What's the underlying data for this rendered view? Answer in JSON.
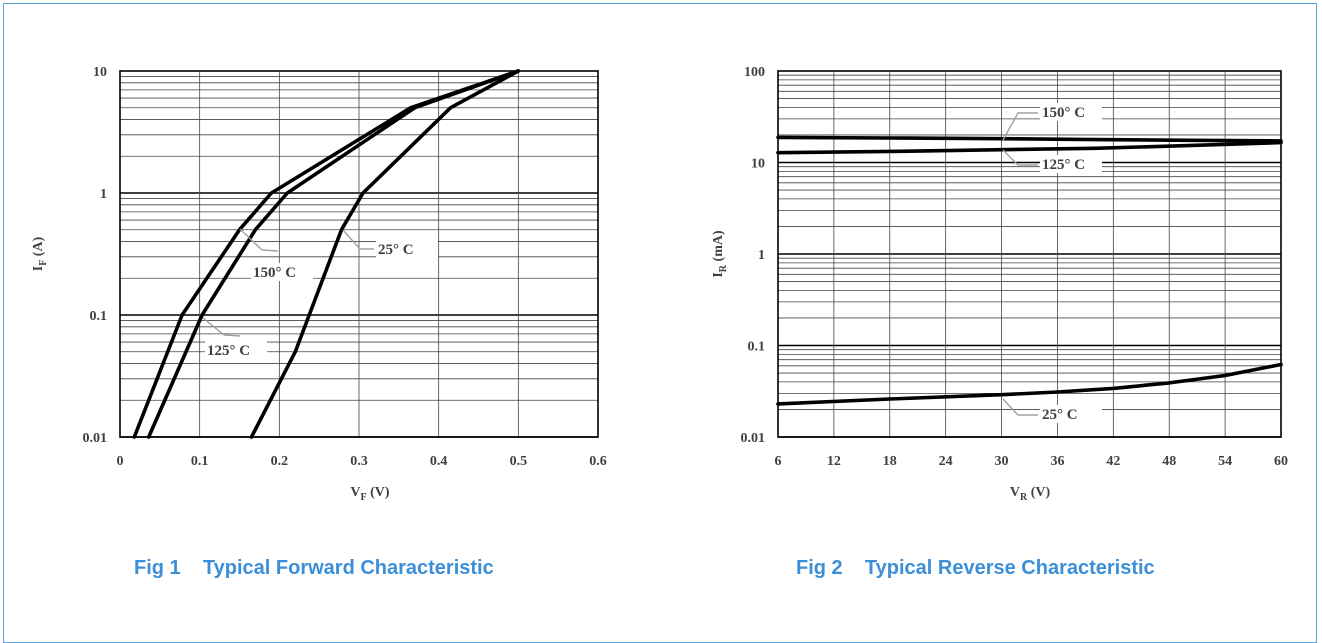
{
  "chart_data": [
    {
      "type": "line",
      "title": "",
      "caption": "Fig 1    Typical Forward Characteristic",
      "xlabel_main": "V",
      "xlabel_sub": "F",
      "xlabel_unit": " (V)",
      "ylabel_main": "I",
      "ylabel_sub": "F",
      "ylabel_unit": " (A)",
      "xscale": "linear",
      "yscale": "log",
      "xlim": [
        0,
        0.6
      ],
      "ylim": [
        0.01,
        10
      ],
      "xticks": [
        "0",
        "0.1",
        "0.2",
        "0.3",
        "0.4",
        "0.5",
        "0.6"
      ],
      "yticks": [
        "0.01",
        "0.1",
        "1",
        "10"
      ],
      "grid": true,
      "series": [
        {
          "name": "150° C",
          "color": "#000000",
          "x": [
            0.018,
            0.078,
            0.15,
            0.19,
            0.365,
            0.5
          ],
          "y": [
            0.01,
            0.1,
            0.5,
            1,
            5,
            10
          ]
        },
        {
          "name": "125° C",
          "color": "#000000",
          "x": [
            0.036,
            0.103,
            0.17,
            0.21,
            0.37,
            0.5
          ],
          "y": [
            0.01,
            0.1,
            0.5,
            1,
            5,
            10
          ]
        },
        {
          "name": "25° C",
          "color": "#000000",
          "x": [
            0.165,
            0.22,
            0.278,
            0.305,
            0.415,
            0.5
          ],
          "y": [
            0.01,
            0.05,
            0.5,
            1,
            5,
            10
          ]
        }
      ],
      "annotations": [
        {
          "text": "150° C",
          "series": "150° C"
        },
        {
          "text": "125° C",
          "series": "125° C"
        },
        {
          "text": "25° C",
          "series": "25° C"
        }
      ]
    },
    {
      "type": "line",
      "title": "",
      "caption": "Fig 2    Typical Reverse Characteristic",
      "xlabel_main": "V",
      "xlabel_sub": "R",
      "xlabel_unit": " (V)",
      "ylabel_main": "I",
      "ylabel_sub": "R",
      "ylabel_unit": " (mA)",
      "xscale": "linear",
      "yscale": "log",
      "xlim": [
        6,
        60
      ],
      "ylim": [
        0.01,
        100
      ],
      "xticks": [
        "6",
        "12",
        "18",
        "24",
        "30",
        "36",
        "42",
        "48",
        "54",
        "60"
      ],
      "yticks": [
        "0.01",
        "0.1",
        "1",
        "10",
        "100"
      ],
      "grid": true,
      "series": [
        {
          "name": "150° C",
          "color": "#000000",
          "x": [
            6,
            20,
            30,
            40,
            50,
            60
          ],
          "y": [
            18.8,
            18.5,
            18.2,
            17.8,
            17.5,
            17.2
          ]
        },
        {
          "name": "125° C",
          "color": "#000000",
          "x": [
            6,
            20,
            30,
            40,
            50,
            60
          ],
          "y": [
            12.8,
            13.3,
            13.8,
            14.3,
            15.3,
            16.5
          ]
        },
        {
          "name": "25° C",
          "color": "#000000",
          "x": [
            6,
            18,
            30,
            36,
            42,
            48,
            54,
            60
          ],
          "y": [
            0.023,
            0.026,
            0.029,
            0.031,
            0.034,
            0.039,
            0.047,
            0.062
          ]
        }
      ],
      "annotations": [
        {
          "text": "150° C",
          "series": "150° C"
        },
        {
          "text": "125° C",
          "series": "125° C"
        },
        {
          "text": "25° C",
          "series": "25° C"
        }
      ]
    }
  ]
}
